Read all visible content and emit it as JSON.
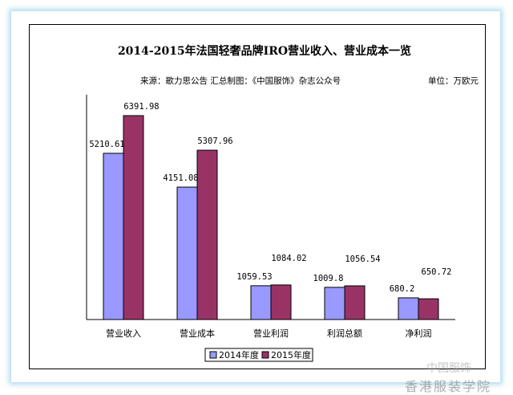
{
  "chart_data": {
    "type": "bar",
    "title": "2014-2015年法国轻奢品牌IRO营业收入、营业成本一览",
    "source": "来源：歌力思公告  汇总制图：《中国服饰》杂志公众号",
    "unit": "单位：万欧元",
    "categories": [
      "营业收入",
      "营业成本",
      "营业利润",
      "利润总额",
      "净利润"
    ],
    "series": [
      {
        "name": "2014年度",
        "color": "#9999ff",
        "values": [
          5210.61,
          4151.08,
          1059.53,
          1009.8,
          680.2
        ],
        "labels": [
          "5210.61",
          "4151.08",
          "1059.53",
          "1009.8",
          "680.2"
        ]
      },
      {
        "name": "2015年度",
        "color": "#993366",
        "values": [
          6391.98,
          5307.96,
          1084.02,
          1056.54,
          650.72
        ],
        "labels": [
          "6391.98",
          "5307.96",
          "1084.02",
          "1056.54",
          "650.72"
        ]
      }
    ],
    "ylim": [
      0,
      7000
    ],
    "legend": "bottom",
    "grid": false
  },
  "watermark": {
    "line1": "中国服饰",
    "line2": "香港服装学院"
  }
}
